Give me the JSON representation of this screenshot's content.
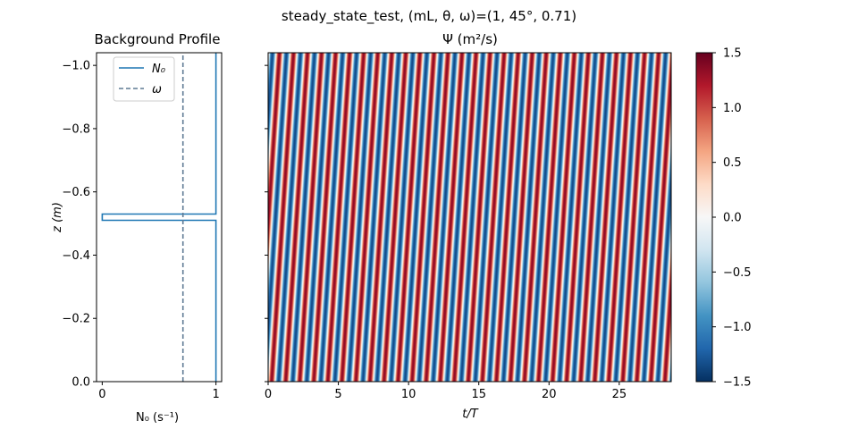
{
  "suptitle": "steady_state_test, (mL, θ, ω)=(1, 45°, 0.71)",
  "colors": {
    "n0_line": "#1f77b4",
    "omega_line": "#5f7a94",
    "cmap": [
      "#053061",
      "#2166ac",
      "#4393c3",
      "#92c5de",
      "#d1e5f0",
      "#f7f7f7",
      "#fddbc7",
      "#f4a582",
      "#d6604d",
      "#b2182b",
      "#67001f"
    ]
  },
  "chart_data": [
    {
      "type": "line",
      "title": "Background Profile",
      "xlabel": "N₀ (s⁻¹)",
      "ylabel": "z (m)",
      "xlim": [
        -0.05,
        1.05
      ],
      "ylim": [
        0,
        -1.04
      ],
      "xticks": [
        0,
        1
      ],
      "yticks": [
        0.0,
        -0.2,
        -0.4,
        -0.6,
        -0.8,
        -1.0
      ],
      "ytick_labels": [
        "0.0",
        "−0.2",
        "−0.4",
        "−0.6",
        "−0.8",
        "−1.0"
      ],
      "xtick_labels": [
        "0",
        "1"
      ],
      "legend": {
        "placement": "top-left",
        "entries": [
          "N₀",
          "ω"
        ]
      },
      "series": [
        {
          "name": "N₀",
          "style": "solid",
          "x": [
            1,
            1,
            0,
            0,
            1,
            1
          ],
          "y": [
            0.0,
            -0.51,
            -0.51,
            -0.53,
            -0.53,
            -1.04
          ]
        },
        {
          "name": "ω",
          "style": "dashed",
          "x": [
            0.71,
            0.71
          ],
          "y": [
            0.0,
            -1.04
          ]
        }
      ]
    },
    {
      "type": "heatmap",
      "title": "Ψ (m²/s)",
      "xlabel": "t/T",
      "xlim": [
        0,
        28.7
      ],
      "ylim": [
        0,
        -1.04
      ],
      "xticks": [
        0,
        5,
        10,
        15,
        20,
        25
      ],
      "xtick_labels": [
        "0",
        "5",
        "10",
        "15",
        "20",
        "25"
      ],
      "yticks": [
        0.0,
        -0.2,
        -0.4,
        -0.6,
        -0.8,
        -1.0
      ],
      "field": {
        "description_fn": "amplitude * sin(2π(t - z*dtdz)/period)",
        "amplitude": 1.35,
        "period": 1.0,
        "dtdz": -1.5
      },
      "colorbar": {
        "vmin": -1.5,
        "vmax": 1.5,
        "ticks": [
          -1.5,
          -1.0,
          -0.5,
          0.0,
          0.5,
          1.0,
          1.5
        ],
        "tick_labels": [
          "−1.5",
          "−1.0",
          "−0.5",
          "0.0",
          "0.5",
          "1.0",
          "1.5"
        ]
      }
    }
  ]
}
